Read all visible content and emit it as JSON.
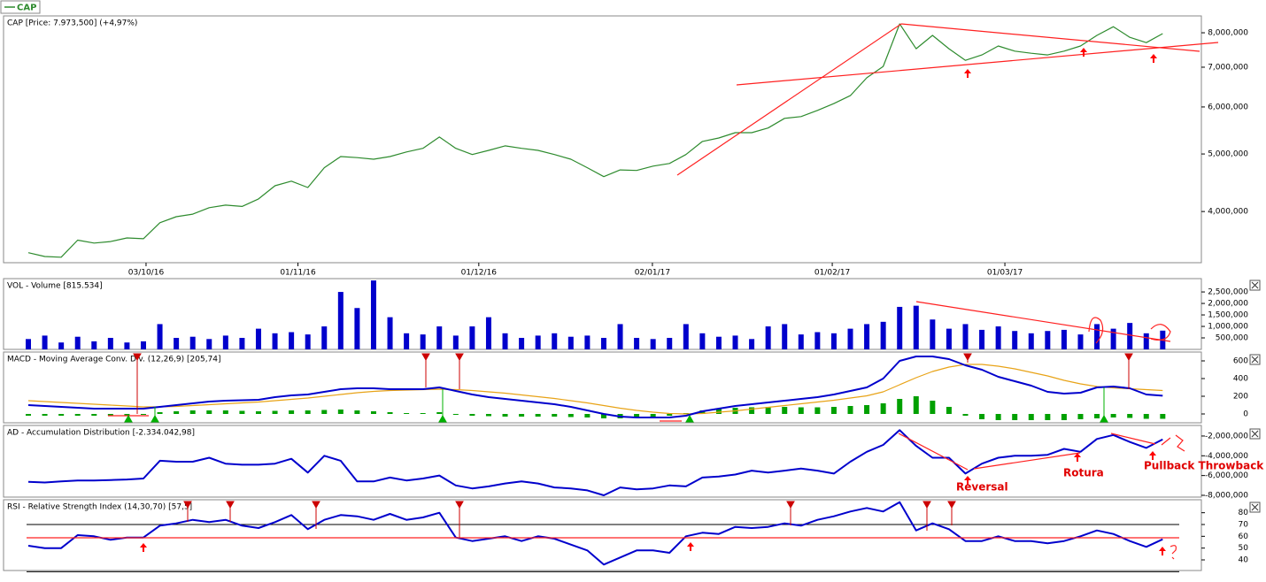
{
  "chart_data": [
    {
      "type": "line",
      "title": "CAP [Price: 7.973,500] (+4,97%)",
      "log_scale": true,
      "series": [
        {
          "name": "CAP",
          "color": "#2e8b2e",
          "values": [
            3410000,
            3360000,
            3350000,
            3580000,
            3540000,
            3560000,
            3610000,
            3600000,
            3830000,
            3920000,
            3960000,
            4060000,
            4100000,
            4080000,
            4200000,
            4420000,
            4500000,
            4390000,
            4740000,
            4950000,
            4930000,
            4900000,
            4950000,
            5040000,
            5110000,
            5340000,
            5110000,
            4990000,
            5070000,
            5160000,
            5110000,
            5070000,
            4990000,
            4900000,
            4740000,
            4580000,
            4700000,
            4690000,
            4770000,
            4820000,
            4990000,
            5250000,
            5320000,
            5430000,
            5430000,
            5530000,
            5740000,
            5780000,
            5920000,
            6080000,
            6270000,
            6720000,
            7020000,
            8280000,
            7520000,
            7920000,
            7520000,
            7190000,
            7340000,
            7600000,
            7450000,
            7390000,
            7340000,
            7450000,
            7600000,
            7920000,
            8190000,
            7860000,
            7700000,
            7973500
          ]
        }
      ],
      "ylim": [
        3280000,
        8540000
      ],
      "yticks": [
        {
          "value": 8000000,
          "label": "8,000,000"
        },
        {
          "value": 7000000,
          "label": "7,000,000"
        },
        {
          "value": 6000000,
          "label": "6,000,000"
        },
        {
          "value": 5000000,
          "label": "5,000,000"
        },
        {
          "value": 4000000,
          "label": "4,000,000"
        }
      ],
      "xticks": [
        {
          "value": 7.16,
          "label": "03/10/16"
        },
        {
          "value": 16.4,
          "label": "01/11/16"
        },
        {
          "value": 27.4,
          "label": "01/12/16"
        },
        {
          "value": 37.96,
          "label": "02/01/17"
        },
        {
          "value": 48.9,
          "label": "01/02/17"
        },
        {
          "value": 59.4,
          "label": "01/03/17"
        }
      ]
    },
    {
      "type": "bar",
      "title": "VOL - Volume [815.534]",
      "series": [
        {
          "type": "bar",
          "color": "#0000cc",
          "values": [
            450000,
            600000,
            300000,
            550000,
            350000,
            500000,
            300000,
            350000,
            1100000,
            500000,
            550000,
            450000,
            600000,
            500000,
            900000,
            700000,
            750000,
            650000,
            1000000,
            2500000,
            1800000,
            3000000,
            1400000,
            700000,
            650000,
            1000000,
            600000,
            1000000,
            1400000,
            700000,
            500000,
            600000,
            700000,
            550000,
            600000,
            500000,
            1100000,
            500000,
            450000,
            500000,
            1100000,
            700000,
            550000,
            600000,
            450000,
            1000000,
            1100000,
            650000,
            750000,
            700000,
            900000,
            1100000,
            1200000,
            1850000,
            1900000,
            1300000,
            900000,
            1100000,
            850000,
            1000000,
            800000,
            700000,
            800000,
            850000,
            650000,
            1100000,
            900000,
            1150000,
            700000,
            815534
          ]
        }
      ],
      "ylim": [
        0,
        3080000
      ],
      "yticks": [
        {
          "value": 2500000,
          "label": "2,500,000"
        },
        {
          "value": 2000000,
          "label": "2,000,000"
        },
        {
          "value": 1500000,
          "label": "1,500,000"
        },
        {
          "value": 1000000,
          "label": "1,000,000"
        },
        {
          "value": 500000,
          "label": "500,000"
        }
      ]
    },
    {
      "type": "macd",
      "title": "MACD - Moving Average Conv. Div. (12,26,9) [205,74]",
      "series": [
        {
          "type": "bar",
          "color": "#00a000",
          "values": [
            -20,
            -20,
            -20,
            -20,
            -20,
            -20,
            -20,
            -10,
            20,
            30,
            40,
            40,
            40,
            35,
            30,
            35,
            40,
            40,
            45,
            50,
            40,
            30,
            20,
            10,
            10,
            20,
            -10,
            -20,
            -25,
            -30,
            -30,
            -30,
            -30,
            -35,
            -40,
            -50,
            -50,
            -40,
            -30,
            -20,
            10,
            40,
            60,
            70,
            75,
            80,
            80,
            75,
            75,
            80,
            90,
            100,
            120,
            170,
            200,
            150,
            80,
            -20,
            -60,
            -70,
            -70,
            -70,
            -70,
            -70,
            -60,
            -50,
            -40,
            -45,
            -55,
            -55
          ]
        },
        {
          "type": "line",
          "color": "#e8a317",
          "values": [
            150,
            140,
            130,
            120,
            110,
            100,
            90,
            80,
            80,
            85,
            95,
            105,
            115,
            125,
            135,
            150,
            165,
            180,
            200,
            220,
            240,
            255,
            265,
            270,
            275,
            280,
            275,
            265,
            250,
            235,
            215,
            195,
            175,
            150,
            125,
            95,
            65,
            40,
            20,
            5,
            0,
            5,
            20,
            35,
            55,
            75,
            95,
            115,
            135,
            155,
            180,
            205,
            250,
            330,
            410,
            480,
            530,
            560,
            560,
            540,
            510,
            470,
            430,
            380,
            340,
            310,
            295,
            285,
            275,
            265
          ]
        },
        {
          "type": "line",
          "color": "#0000cc",
          "values": [
            100,
            90,
            80,
            70,
            60,
            60,
            60,
            60,
            80,
            100,
            120,
            140,
            150,
            155,
            160,
            190,
            210,
            220,
            250,
            280,
            290,
            290,
            280,
            280,
            280,
            300,
            260,
            220,
            190,
            170,
            150,
            130,
            110,
            80,
            40,
            0,
            -30,
            -40,
            -40,
            -40,
            -20,
            30,
            60,
            90,
            110,
            130,
            150,
            170,
            190,
            220,
            260,
            300,
            400,
            600,
            650,
            650,
            620,
            550,
            500,
            420,
            370,
            320,
            250,
            230,
            240,
            300,
            310,
            290,
            220,
            205.74
          ]
        }
      ],
      "ylim": [
        -100,
        700
      ],
      "yticks": [
        600,
        400,
        200,
        0
      ]
    },
    {
      "type": "line",
      "title": "AD - Accumulation Distribution [-2.334.042,98]",
      "series": [
        {
          "color": "#0000cc",
          "values": [
            -6640000,
            -6700000,
            -6600000,
            -6500000,
            -6500000,
            -6450000,
            -6400000,
            -6300000,
            -4500000,
            -4600000,
            -4600000,
            -4200000,
            -4800000,
            -4900000,
            -4900000,
            -4800000,
            -4300000,
            -5700000,
            -4000000,
            -4500000,
            -6600000,
            -6600000,
            -6200000,
            -6500000,
            -6300000,
            -6000000,
            -7000000,
            -7300000,
            -7100000,
            -6800000,
            -6600000,
            -6800000,
            -7200000,
            -7300000,
            -7500000,
            -8000000,
            -7200000,
            -7400000,
            -7300000,
            -7000000,
            -7100000,
            -6200000,
            -6100000,
            -5900000,
            -5500000,
            -5700000,
            -5500000,
            -5300000,
            -5500000,
            -5800000,
            -4600000,
            -3600000,
            -2900000,
            -1400000,
            -3000000,
            -4200000,
            -4200000,
            -5800000,
            -4800000,
            -4200000,
            -4000000,
            -4000000,
            -3900000,
            -3300000,
            -3600000,
            -2300000,
            -1900000,
            -2600000,
            -3200000,
            -2334042.98
          ]
        }
      ],
      "ylim": [
        -8180000,
        -930000
      ],
      "yticks": [
        {
          "value": -2000000,
          "label": "-2,000,000"
        },
        {
          "value": -4000000,
          "label": "-4,000,000"
        },
        {
          "value": -6000000,
          "label": "-6,000,000"
        },
        {
          "value": -8000000,
          "label": "-8,000,000"
        }
      ],
      "annotations": [
        "Reversal",
        "Rotura",
        "Pullback Throwback"
      ]
    },
    {
      "type": "line",
      "title": "RSI - Relative Strength Index (14,30,70) [57,5]",
      "series": [
        {
          "color": "#0000cc",
          "values": [
            52,
            50,
            50,
            61,
            60,
            57,
            59,
            59,
            69,
            71,
            74,
            72,
            74,
            69,
            67,
            72,
            78,
            66,
            74,
            78,
            77,
            74,
            79,
            74,
            76,
            80,
            59,
            56,
            58,
            60,
            56,
            60,
            58,
            53,
            48,
            36,
            42,
            48,
            48,
            46,
            60,
            63,
            62,
            68,
            67,
            68,
            71,
            69,
            74,
            77,
            81,
            84,
            81,
            89,
            65,
            71,
            66,
            56,
            56,
            60,
            56,
            56,
            54,
            56,
            60,
            65,
            62,
            56,
            51,
            57.5
          ]
        }
      ],
      "levels": [
        30,
        70
      ],
      "ylim": [
        31,
        91
      ],
      "yticks": [
        80,
        70,
        60,
        50,
        40
      ]
    }
  ]
}
